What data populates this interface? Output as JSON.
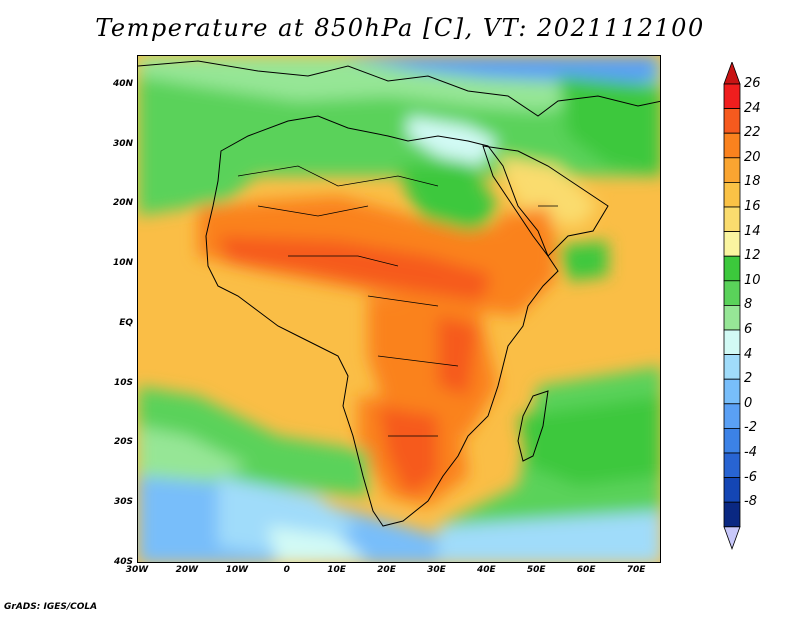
{
  "title": "Temperature at 850hPa [C], VT: 2021112100",
  "credit": "GrADS: IGES/COLA",
  "map": {
    "lon_range": [
      -30,
      75
    ],
    "lat_range": [
      -40,
      45
    ],
    "lat_ticks": [
      {
        "value": 40,
        "label": "40N"
      },
      {
        "value": 30,
        "label": "30N"
      },
      {
        "value": 20,
        "label": "20N"
      },
      {
        "value": 10,
        "label": "10N"
      },
      {
        "value": 0,
        "label": "EQ"
      },
      {
        "value": -10,
        "label": "10S"
      },
      {
        "value": -20,
        "label": "20S"
      },
      {
        "value": -30,
        "label": "30S"
      },
      {
        "value": -40,
        "label": "40S"
      }
    ],
    "lon_ticks": [
      {
        "value": -30,
        "label": "30W"
      },
      {
        "value": -20,
        "label": "20W"
      },
      {
        "value": -10,
        "label": "10W"
      },
      {
        "value": 0,
        "label": "0"
      },
      {
        "value": 10,
        "label": "10E"
      },
      {
        "value": 20,
        "label": "20E"
      },
      {
        "value": 30,
        "label": "30E"
      },
      {
        "value": 40,
        "label": "40E"
      },
      {
        "value": 50,
        "label": "50E"
      },
      {
        "value": 60,
        "label": "60E"
      },
      {
        "value": 70,
        "label": "70E"
      }
    ]
  },
  "colorbar": {
    "levels": [
      "26",
      "24",
      "22",
      "20",
      "18",
      "16",
      "14",
      "12",
      "10",
      "8",
      "6",
      "4",
      "2",
      "0",
      "-2",
      "-4",
      "-6",
      "-8"
    ],
    "colors_top_to_bottom": [
      "#f01e1e",
      "#f65a1e",
      "#fa821e",
      "#faa531",
      "#fac246",
      "#fadc6e",
      "#faf5a0",
      "#3cc83c",
      "#5ad25a",
      "#96e696",
      "#d2faf5",
      "#a0dcfa",
      "#78befa",
      "#5aa0f5",
      "#3c82e6",
      "#2864d2",
      "#1446b4",
      "#0a2882",
      "#c8c8fa"
    ],
    "top_arrow_color": "#c81414",
    "bottom_arrow_color": "#c8c8fa"
  }
}
